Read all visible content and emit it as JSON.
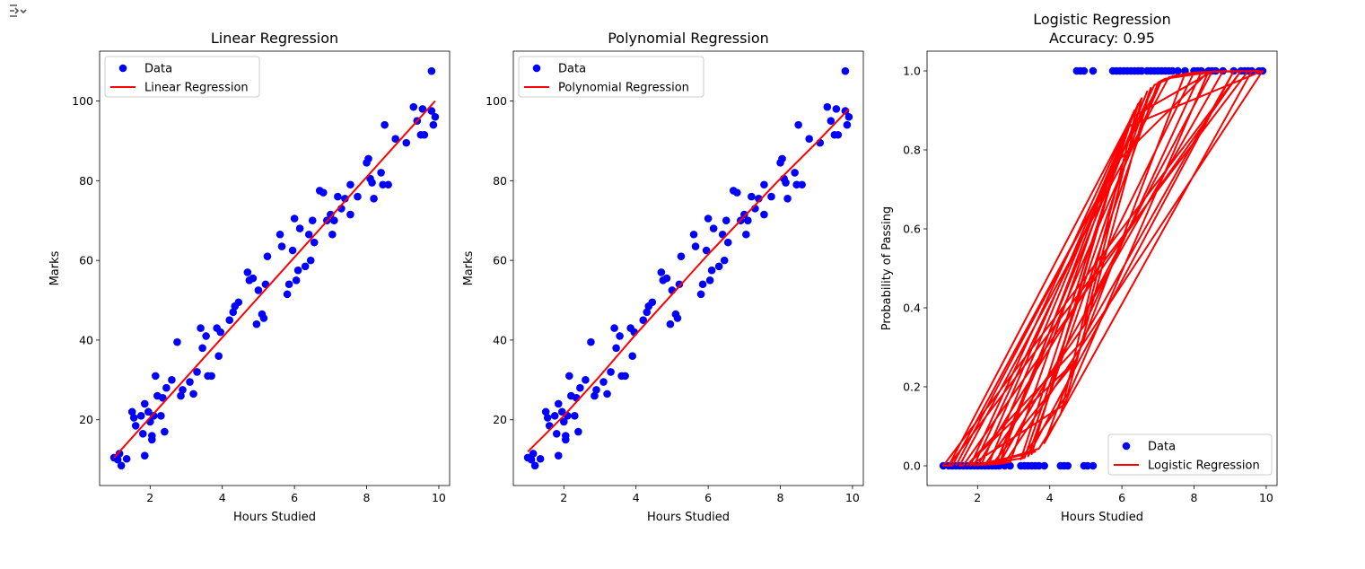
{
  "colors": {
    "data": "#0000ff",
    "fit": "#ff0000"
  },
  "toolbar": {
    "icon": "collapse-output-icon"
  },
  "chart_data": [
    {
      "type": "scatter",
      "title": "Linear Regression",
      "xlabel": "Hours Studied",
      "ylabel": "Marks",
      "xlim": [
        0.6,
        10.3
      ],
      "ylim": [
        3.5,
        112.5
      ],
      "xticks": [
        2,
        4,
        6,
        8,
        10
      ],
      "yticks": [
        20,
        40,
        60,
        80,
        100
      ],
      "grid": false,
      "legend_position": "upper-left",
      "series": [
        {
          "name": "Data",
          "kind": "scatter",
          "color": "#0000ff",
          "points": [
            [
              1.0,
              10.5
            ],
            [
              1.1,
              10.0
            ],
            [
              1.15,
              11.5
            ],
            [
              1.2,
              8.5
            ],
            [
              1.35,
              10.2
            ],
            [
              1.5,
              22.0
            ],
            [
              1.55,
              20.5
            ],
            [
              1.6,
              18.5
            ],
            [
              1.75,
              21.0
            ],
            [
              1.8,
              16.5
            ],
            [
              1.85,
              11.0
            ],
            [
              1.85,
              24.0
            ],
            [
              1.95,
              22.0
            ],
            [
              2.0,
              19.5
            ],
            [
              2.05,
              15.0
            ],
            [
              2.05,
              16.0
            ],
            [
              2.1,
              21.0
            ],
            [
              2.15,
              31.0
            ],
            [
              2.2,
              26.0
            ],
            [
              2.3,
              21.0
            ],
            [
              2.35,
              25.5
            ],
            [
              2.4,
              17.0
            ],
            [
              2.45,
              28.0
            ],
            [
              2.6,
              30.0
            ],
            [
              2.75,
              39.5
            ],
            [
              2.85,
              26.0
            ],
            [
              2.9,
              27.5
            ],
            [
              3.1,
              29.5
            ],
            [
              3.2,
              26.5
            ],
            [
              3.3,
              32.0
            ],
            [
              3.4,
              43.0
            ],
            [
              3.45,
              38.0
            ],
            [
              3.55,
              41.0
            ],
            [
              3.6,
              31.0
            ],
            [
              3.7,
              31.0
            ],
            [
              3.85,
              43.0
            ],
            [
              3.9,
              36.0
            ],
            [
              3.95,
              42.0
            ],
            [
              4.2,
              45.0
            ],
            [
              4.3,
              47.0
            ],
            [
              4.35,
              48.5
            ],
            [
              4.45,
              49.5
            ],
            [
              4.7,
              57.0
            ],
            [
              4.75,
              55.0
            ],
            [
              4.85,
              55.5
            ],
            [
              4.95,
              44.0
            ],
            [
              5.0,
              52.5
            ],
            [
              5.1,
              46.5
            ],
            [
              5.15,
              45.5
            ],
            [
              5.2,
              54.0
            ],
            [
              5.25,
              61.0
            ],
            [
              5.6,
              66.5
            ],
            [
              5.65,
              63.5
            ],
            [
              5.8,
              51.5
            ],
            [
              5.85,
              54.0
            ],
            [
              5.95,
              62.5
            ],
            [
              6.0,
              70.5
            ],
            [
              6.05,
              55.0
            ],
            [
              6.1,
              57.5
            ],
            [
              6.15,
              68.0
            ],
            [
              6.3,
              58.5
            ],
            [
              6.4,
              66.5
            ],
            [
              6.45,
              60.0
            ],
            [
              6.5,
              70.0
            ],
            [
              6.55,
              64.5
            ],
            [
              6.7,
              77.5
            ],
            [
              6.8,
              77.0
            ],
            [
              6.9,
              70.0
            ],
            [
              7.0,
              71.5
            ],
            [
              7.05,
              66.5
            ],
            [
              7.1,
              70.0
            ],
            [
              7.2,
              76.0
            ],
            [
              7.3,
              73.0
            ],
            [
              7.4,
              75.5
            ],
            [
              7.55,
              79.0
            ],
            [
              7.55,
              71.5
            ],
            [
              7.75,
              76.0
            ],
            [
              8.0,
              84.5
            ],
            [
              8.05,
              85.5
            ],
            [
              8.1,
              80.5
            ],
            [
              8.15,
              79.5
            ],
            [
              8.2,
              75.5
            ],
            [
              8.4,
              82.0
            ],
            [
              8.45,
              79.0
            ],
            [
              8.5,
              94.0
            ],
            [
              8.6,
              79.0
            ],
            [
              8.8,
              90.5
            ],
            [
              9.1,
              89.5
            ],
            [
              9.3,
              98.5
            ],
            [
              9.4,
              95.0
            ],
            [
              9.5,
              91.5
            ],
            [
              9.55,
              98.0
            ],
            [
              9.6,
              91.5
            ],
            [
              9.8,
              107.5
            ],
            [
              9.8,
              97.5
            ],
            [
              9.85,
              94.0
            ],
            [
              9.9,
              96.0
            ]
          ]
        },
        {
          "name": "Linear Regression",
          "kind": "line",
          "color": "#ff0000",
          "points": [
            [
              1.0,
              10.5
            ],
            [
              9.9,
              100.0
            ]
          ]
        }
      ]
    },
    {
      "type": "scatter",
      "title": "Polynomial Regression",
      "xlabel": "Hours Studied",
      "ylabel": "Marks",
      "xlim": [
        0.6,
        10.3
      ],
      "ylim": [
        3.5,
        112.5
      ],
      "xticks": [
        2,
        4,
        6,
        8,
        10
      ],
      "yticks": [
        20,
        40,
        60,
        80,
        100
      ],
      "grid": false,
      "legend_position": "upper-left",
      "series": [
        {
          "name": "Data",
          "kind": "scatter",
          "color": "#0000ff",
          "points_ref": 0
        },
        {
          "name": "Polynomial Regression",
          "kind": "line",
          "color": "#ff0000",
          "points": [
            [
              1.0,
              12.0
            ],
            [
              2.0,
              21.0
            ],
            [
              3.0,
              31.0
            ],
            [
              4.0,
              41.5
            ],
            [
              5.0,
              51.5
            ],
            [
              6.0,
              61.5
            ],
            [
              7.0,
              71.0
            ],
            [
              8.0,
              80.5
            ],
            [
              9.0,
              89.5
            ],
            [
              9.9,
              98.0
            ]
          ]
        }
      ]
    },
    {
      "type": "scatter",
      "title": "Logistic Regression",
      "subtitle": "Accuracy: 0.95",
      "xlabel": "Hours Studied",
      "ylabel": "Probability of Passing",
      "xlim": [
        0.6,
        10.3
      ],
      "ylim": [
        -0.05,
        1.05
      ],
      "xticks": [
        2,
        4,
        6,
        8,
        10
      ],
      "yticks": [
        0.0,
        0.2,
        0.4,
        0.6,
        0.8,
        1.0
      ],
      "ytick_labels": [
        "0.0",
        "0.2",
        "0.4",
        "0.6",
        "0.8",
        "1.0"
      ],
      "grid": false,
      "legend_position": "lower-right",
      "series": [
        {
          "name": "Data",
          "kind": "scatter",
          "color": "#0000ff",
          "points": [
            [
              1.05,
              0
            ],
            [
              1.2,
              0
            ],
            [
              1.3,
              0
            ],
            [
              1.4,
              0
            ],
            [
              1.5,
              0
            ],
            [
              1.6,
              0
            ],
            [
              1.7,
              0
            ],
            [
              1.8,
              0
            ],
            [
              1.9,
              0
            ],
            [
              2.0,
              0
            ],
            [
              2.1,
              0
            ],
            [
              2.2,
              0
            ],
            [
              2.3,
              0
            ],
            [
              2.4,
              0
            ],
            [
              2.5,
              0
            ],
            [
              2.6,
              0
            ],
            [
              2.75,
              0
            ],
            [
              2.9,
              0
            ],
            [
              3.2,
              0
            ],
            [
              3.3,
              0
            ],
            [
              3.4,
              0
            ],
            [
              3.5,
              0
            ],
            [
              3.6,
              0
            ],
            [
              3.7,
              0
            ],
            [
              3.85,
              0
            ],
            [
              4.3,
              0
            ],
            [
              4.4,
              0
            ],
            [
              4.5,
              0
            ],
            [
              4.95,
              0
            ],
            [
              5.05,
              0
            ],
            [
              5.2,
              0
            ],
            [
              4.75,
              1
            ],
            [
              4.85,
              1
            ],
            [
              4.95,
              1
            ],
            [
              5.2,
              1
            ],
            [
              5.75,
              1
            ],
            [
              5.85,
              1
            ],
            [
              5.95,
              1
            ],
            [
              6.05,
              1
            ],
            [
              6.15,
              1
            ],
            [
              6.25,
              1
            ],
            [
              6.35,
              1
            ],
            [
              6.45,
              1
            ],
            [
              6.55,
              1
            ],
            [
              6.7,
              1
            ],
            [
              6.8,
              1
            ],
            [
              6.9,
              1
            ],
            [
              7.0,
              1
            ],
            [
              7.1,
              1
            ],
            [
              7.2,
              1
            ],
            [
              7.3,
              1
            ],
            [
              7.4,
              1
            ],
            [
              7.55,
              1
            ],
            [
              7.75,
              1
            ],
            [
              8.0,
              1
            ],
            [
              8.1,
              1
            ],
            [
              8.2,
              1
            ],
            [
              8.4,
              1
            ],
            [
              8.5,
              1
            ],
            [
              8.6,
              1
            ],
            [
              8.8,
              1
            ],
            [
              9.1,
              1
            ],
            [
              9.3,
              1
            ],
            [
              9.4,
              1
            ],
            [
              9.5,
              1
            ],
            [
              9.6,
              1
            ],
            [
              9.8,
              1
            ],
            [
              9.9,
              1
            ]
          ]
        },
        {
          "name": "Logistic Regression",
          "kind": "line",
          "color": "#ff0000",
          "curve": {
            "model": "logistic",
            "coef": 2.0,
            "intercept": -10.5,
            "x_order": "unsorted"
          }
        }
      ]
    }
  ]
}
